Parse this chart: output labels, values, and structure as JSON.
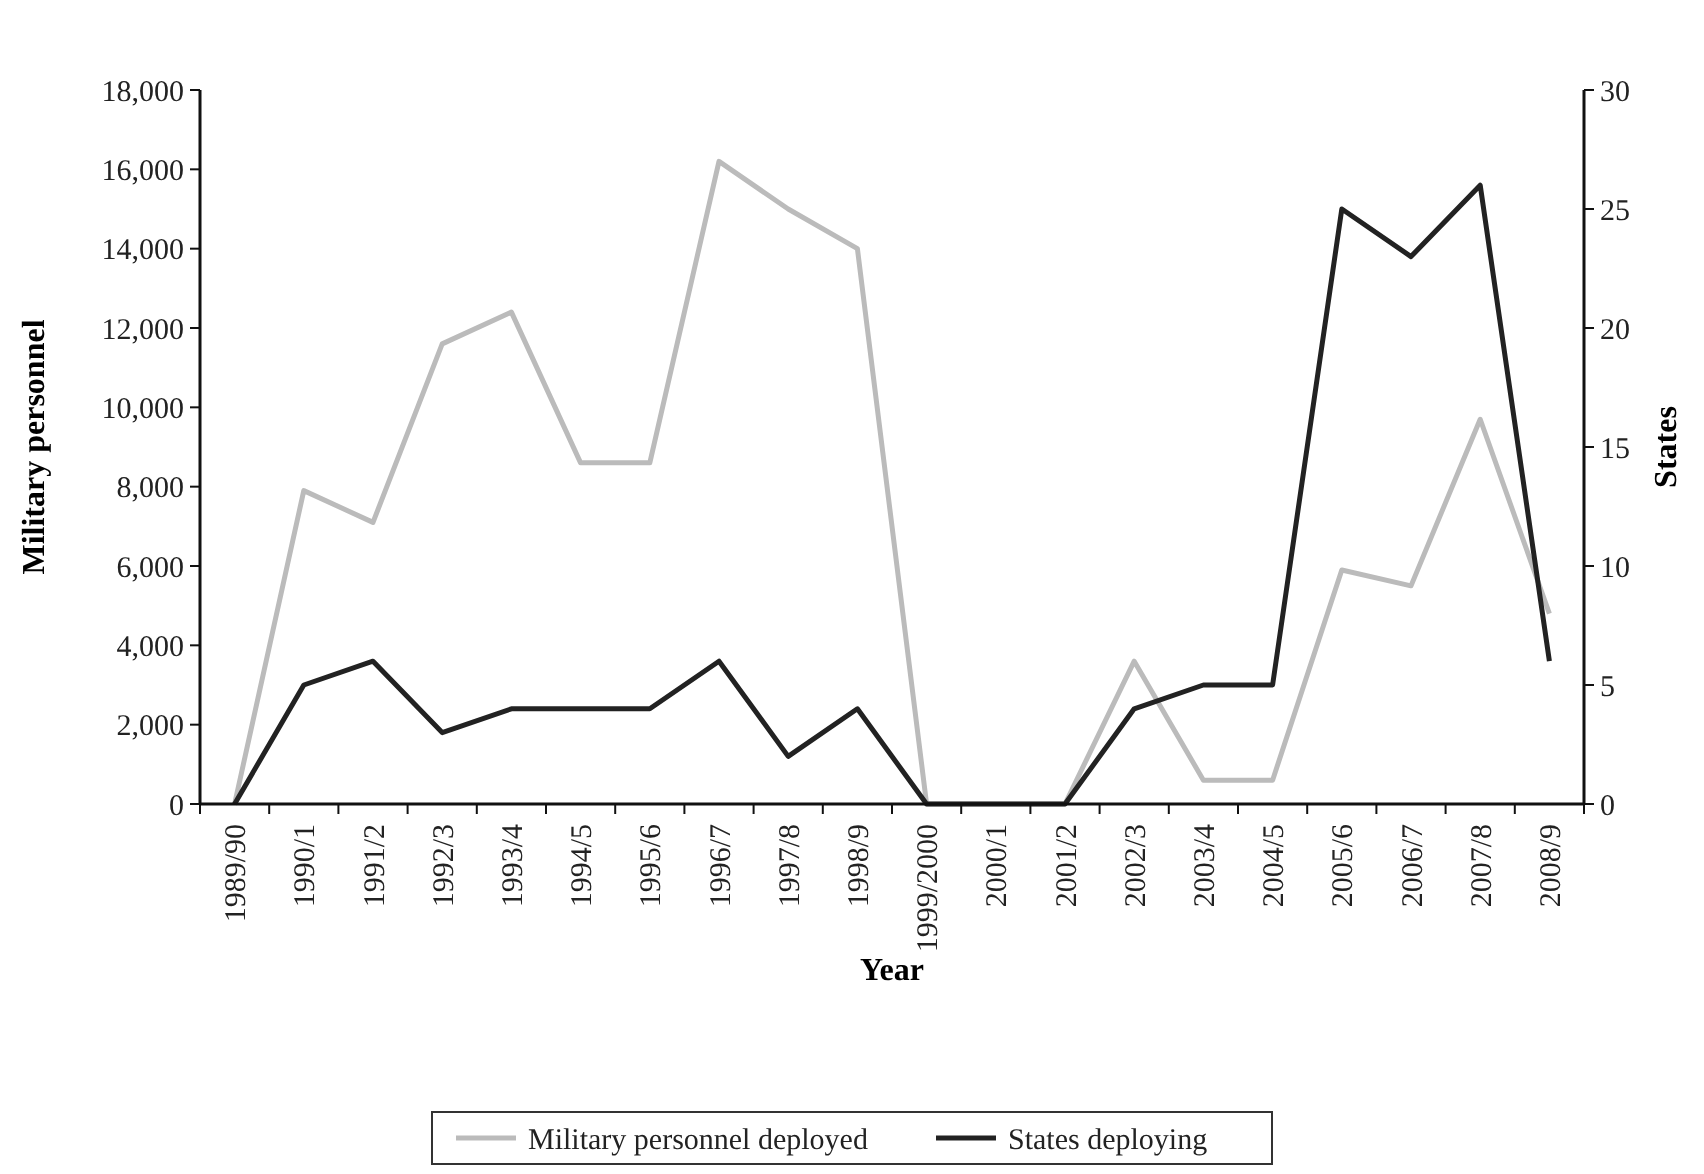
{
  "chart_data": {
    "type": "line",
    "xlabel": "Year",
    "ylabel": "Military personnel",
    "y2label": "States",
    "categories": [
      "1989/90",
      "1990/1",
      "1991/2",
      "1992/3",
      "1993/4",
      "1994/5",
      "1995/6",
      "1996/7",
      "1997/8",
      "1998/9",
      "1999/2000",
      "2000/1",
      "2001/2",
      "2002/3",
      "2003/4",
      "2004/5",
      "2005/6",
      "2006/7",
      "2007/8",
      "2008/9"
    ],
    "series": [
      {
        "name": "Military personnel deployed",
        "color": "#bbbbbb",
        "values": [
          0,
          7900,
          7100,
          11600,
          12400,
          8600,
          8600,
          16200,
          15000,
          14000,
          0,
          0,
          0,
          3600,
          600,
          600,
          5900,
          5500,
          9700,
          4800
        ]
      },
      {
        "name": "States deploying",
        "color": "#222222",
        "axis": "y2",
        "values": [
          0,
          5,
          6,
          3,
          4,
          4,
          4,
          6,
          2,
          4,
          0,
          0,
          0,
          4,
          5,
          5,
          25,
          23,
          26,
          6
        ]
      }
    ],
    "ylim": [
      0,
      18000
    ],
    "yticks": [
      0,
      {
        "value": 2000,
        "label": "2,000"
      },
      {
        "value": 4000,
        "label": "4,000"
      },
      {
        "value": 6000,
        "label": "6,000"
      },
      {
        "value": 8000,
        "label": "8,000"
      },
      {
        "value": 10000,
        "label": "10,000"
      },
      {
        "value": 12000,
        "label": "12,000"
      },
      {
        "value": 14000,
        "label": "14,000"
      },
      {
        "value": 16000,
        "label": "16,000"
      },
      {
        "value": 18000,
        "label": "18,000"
      }
    ],
    "y2lim": [
      0,
      30
    ],
    "y2ticks": [
      0,
      5,
      10,
      15,
      20,
      25,
      30
    ],
    "grid": false,
    "legend": "bottom",
    "marker": "none",
    "line_style": "solid"
  }
}
